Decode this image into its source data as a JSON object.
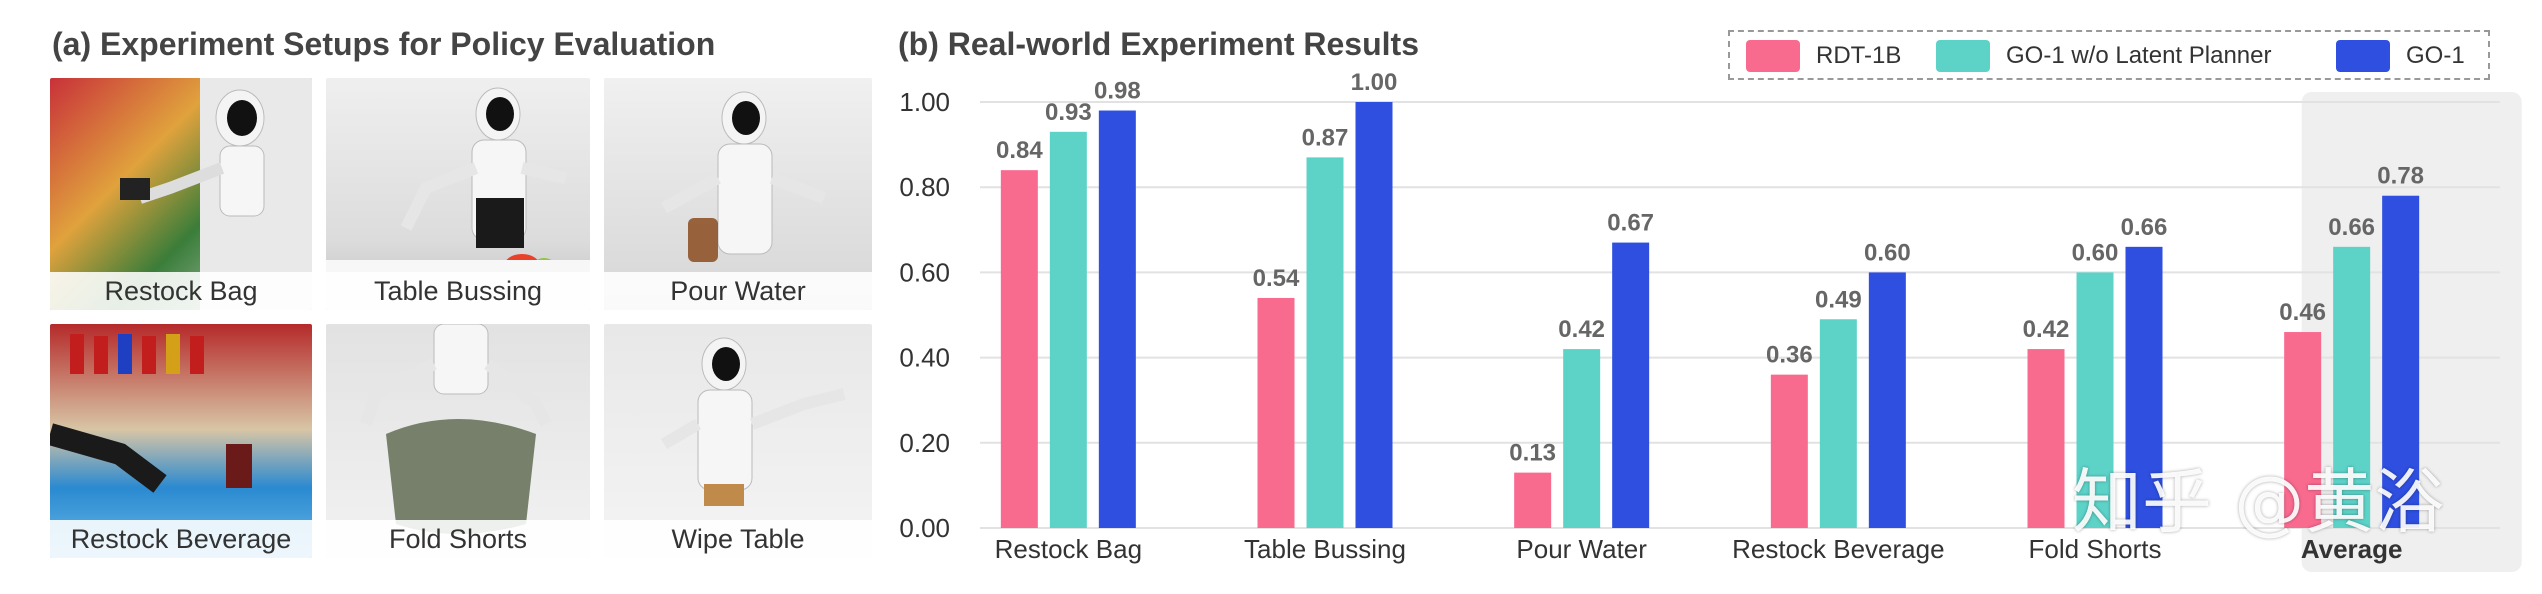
{
  "panel_a": {
    "title": "(a) Experiment Setups for Policy Evaluation",
    "photos": [
      "Restock Bag",
      "Table Bussing",
      "Pour Water",
      "Restock Beverage",
      "Fold Shorts",
      "Wipe Table"
    ]
  },
  "panel_b": {
    "title": "(b) Real-world Experiment Results"
  },
  "legend": [
    {
      "label": "RDT-1B",
      "color": "#F96A8F"
    },
    {
      "label": "GO-1 w/o Latent Planner",
      "color": "#5DD3C8"
    },
    {
      "label": "GO-1",
      "color": "#2E4FE0"
    }
  ],
  "watermark": "知乎 @黄浴",
  "chart_data": {
    "type": "bar",
    "title": "(b) Real-world Experiment Results",
    "categories": [
      "Restock Bag",
      "Table Bussing",
      "Pour Water",
      "Restock Beverage",
      "Fold Shorts",
      "Average"
    ],
    "highlight_category": "Average",
    "series": [
      {
        "name": "RDT-1B",
        "color": "#F96A8F",
        "values": [
          0.84,
          0.54,
          0.13,
          0.36,
          0.42,
          0.46
        ]
      },
      {
        "name": "GO-1 w/o Latent Planner",
        "color": "#5DD3C8",
        "values": [
          0.93,
          0.87,
          0.42,
          0.49,
          0.6,
          0.66
        ]
      },
      {
        "name": "GO-1",
        "color": "#2E4FE0",
        "values": [
          0.98,
          1.0,
          0.67,
          0.6,
          0.66,
          0.78
        ]
      }
    ],
    "yticks": [
      "0.00",
      "0.20",
      "0.40",
      "0.60",
      "0.80",
      "1.00"
    ],
    "ylim": [
      0,
      1.0
    ],
    "xlabel": "",
    "ylabel": "",
    "grid": true,
    "legend_position": "top-right"
  }
}
